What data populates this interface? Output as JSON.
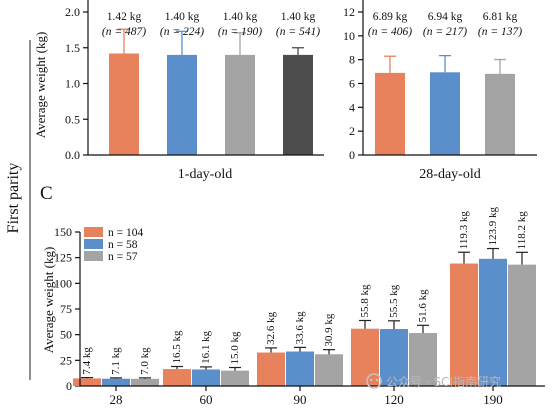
{
  "row_label": "First parity",
  "panel_c_letter": "C",
  "watermark": "公众号 · SCI指南研究",
  "chart_data": [
    {
      "type": "bar",
      "ylabel": "Average weight (kg)",
      "xlabel": "1-day-old",
      "ylim": [
        0,
        2.0
      ],
      "yticks": [
        "0.0",
        "0.5",
        "1.0",
        "1.5",
        "2.0"
      ],
      "values": [
        1.42,
        1.4,
        1.4,
        1.4
      ],
      "errors": [
        0.34,
        0.33,
        0.31,
        0.1
      ],
      "colors": [
        "#E8825D",
        "#5B8FCC",
        "#A4A4A4",
        "#4D4D4D"
      ],
      "value_labels": [
        "1.42 kg",
        "1.40 kg",
        "1.40 kg",
        "1.40 kg"
      ],
      "n_labels": [
        "(n = 487)",
        "(n = 224)",
        "(n = 190)",
        "(n = 541)"
      ]
    },
    {
      "type": "bar",
      "xlabel": "28-day-old",
      "ylim": [
        0,
        12
      ],
      "yticks": [
        "0",
        "2",
        "4",
        "6",
        "8",
        "10",
        "12"
      ],
      "values": [
        6.89,
        6.94,
        6.81
      ],
      "errors": [
        1.4,
        1.4,
        1.2
      ],
      "colors": [
        "#E8825D",
        "#5B8FCC",
        "#A4A4A4"
      ],
      "value_labels": [
        "6.89 kg",
        "6.94 kg",
        "6.81 kg"
      ],
      "n_labels": [
        "(n = 406)",
        "(n = 217)",
        "(n = 137)"
      ]
    },
    {
      "type": "bar",
      "ylabel": "Average weight (kg)",
      "ylim": [
        0,
        150
      ],
      "yticks": [
        "0",
        "25",
        "50",
        "75",
        "100",
        "125",
        "150"
      ],
      "categories": [
        "28",
        "60",
        "90",
        "120",
        "190"
      ],
      "legend_position": "top-left",
      "series": [
        {
          "name": "n = 104",
          "color": "#E8825D",
          "values": [
            7.4,
            16.5,
            32.6,
            55.8,
            119.3
          ],
          "errors": [
            0.8,
            2.5,
            4.5,
            8.0,
            11.0
          ],
          "labels": [
            "7.4 kg",
            "16.5 kg",
            "32.6 kg",
            "55.8 kg",
            "119.3 kg"
          ]
        },
        {
          "name": "n = 58",
          "color": "#5B8FCC",
          "values": [
            7.1,
            16.1,
            33.6,
            55.5,
            123.9
          ],
          "errors": [
            0.8,
            2.5,
            4.0,
            8.0,
            10.0
          ],
          "labels": [
            "7.1 kg",
            "16.1 kg",
            "33.6 kg",
            "55.5 kg",
            "123.9 kg"
          ]
        },
        {
          "name": "n = 57",
          "color": "#A4A4A4",
          "values": [
            7.0,
            15.0,
            30.9,
            51.6,
            118.2
          ],
          "errors": [
            0.9,
            3.0,
            4.5,
            7.5,
            12.0
          ],
          "labels": [
            "7.0 kg",
            "15.0 kg",
            "30.9 kg",
            "51.6 kg",
            "118.2 kg"
          ]
        }
      ]
    }
  ]
}
